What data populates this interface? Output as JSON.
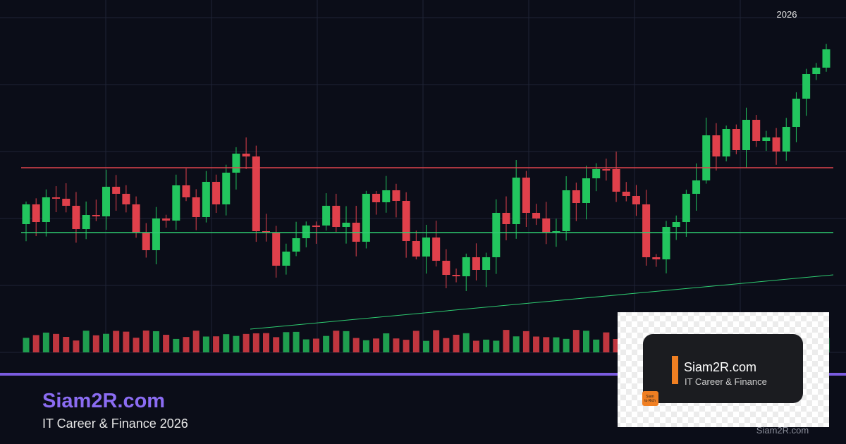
{
  "header": {
    "year": "2026"
  },
  "brand": {
    "title": "Siam2R.com",
    "subtitle": "IT Career & Finance 2026"
  },
  "logo": {
    "name": "Siam2R.com",
    "tagline": "IT Career & Finance",
    "icon": [
      "Siam",
      "to Rich"
    ]
  },
  "watermark": "Siam2R.com"
}
